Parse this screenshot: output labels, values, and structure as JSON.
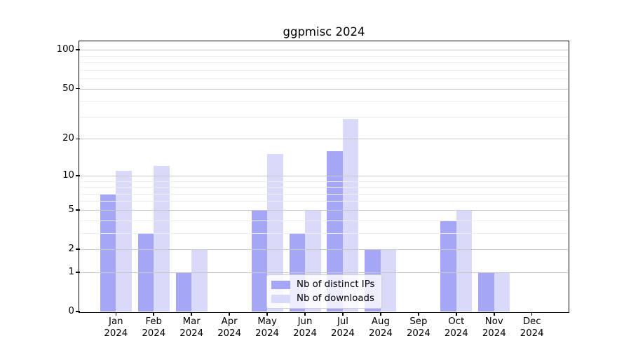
{
  "chart_data": {
    "type": "bar",
    "title": "ggpmisc 2024",
    "categories": [
      "Jan",
      "Feb",
      "Mar",
      "Apr",
      "May",
      "Jun",
      "Jul",
      "Aug",
      "Sep",
      "Oct",
      "Nov",
      "Dec"
    ],
    "x_year_label": "2024",
    "series": [
      {
        "name": "Nb of distinct IPs",
        "color": "#a5a6f6",
        "values": [
          7,
          3,
          1,
          0,
          5,
          3,
          16,
          2,
          0,
          4,
          1,
          0
        ]
      },
      {
        "name": "Nb of downloads",
        "color": "#d9daf9",
        "values": [
          11,
          12,
          2,
          0,
          15,
          5,
          29,
          2,
          0,
          5,
          1,
          0
        ]
      }
    ],
    "y_axis": {
      "scale": "log1p",
      "ticks": [
        0,
        1,
        2,
        5,
        10,
        20,
        50,
        100
      ],
      "minor_gridlines": [
        3,
        4,
        6,
        7,
        8,
        9,
        30,
        40,
        60,
        70,
        80,
        90
      ],
      "max": 115
    },
    "grid": {
      "major_color": "#c8c8c8",
      "minor_color": "#ededed",
      "on": true
    },
    "legend": {
      "position": "lower center",
      "entries": [
        "Nb of distinct IPs",
        "Nb of downloads"
      ]
    }
  }
}
